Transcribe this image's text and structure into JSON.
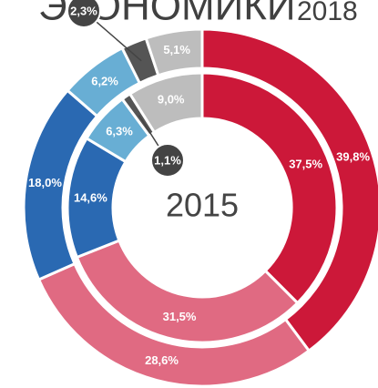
{
  "chart_data": {
    "type": "donut",
    "title": "ЭКОНОМИКИ",
    "colors": [
      "#cc1839",
      "#e06a82",
      "#2a69b2",
      "#68aed4",
      "#555555",
      "#bdbdbd"
    ],
    "series": [
      {
        "name": "2018",
        "values": [
          39.8,
          28.6,
          18.0,
          6.2,
          2.3,
          5.1
        ],
        "value_labels": [
          "39,8%",
          "28,6%",
          "18,0%",
          "6,2%",
          "2,3%",
          "5,1%"
        ]
      },
      {
        "name": "2015",
        "values": [
          37.5,
          31.5,
          14.6,
          6.3,
          1.1,
          9.0
        ],
        "value_labels": [
          "37,5%",
          "31,5%",
          "14,6%",
          "6,3%",
          "1,1%",
          "9,0%"
        ]
      }
    ]
  }
}
